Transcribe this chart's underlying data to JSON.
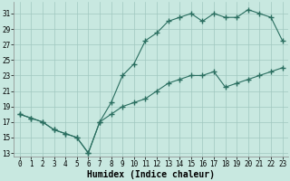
{
  "xlabel": "Humidex (Indice chaleur)",
  "bg_color": "#c8e8e0",
  "grid_color": "#a0c8c0",
  "line_color": "#2a6e60",
  "upper_x": [
    0,
    1,
    2,
    3,
    4,
    5,
    6,
    7,
    8,
    9,
    10,
    11,
    12,
    13,
    14,
    15,
    16,
    17,
    18,
    19,
    20,
    21,
    22,
    23
  ],
  "upper_y": [
    18,
    17.5,
    17,
    16,
    15.5,
    15,
    13,
    17,
    19.5,
    23,
    24.5,
    27.5,
    28.5,
    30,
    30.5,
    31,
    30,
    31,
    30.5,
    30.5,
    31.5,
    31,
    30.5,
    27.5
  ],
  "lower_x": [
    0,
    1,
    2,
    3,
    4,
    5,
    6,
    7,
    8,
    9,
    10,
    11,
    12,
    13,
    14,
    15,
    16,
    17,
    18,
    19,
    20,
    21,
    22,
    23
  ],
  "lower_y": [
    18,
    17.5,
    17,
    16,
    15.5,
    15,
    13,
    17,
    18,
    19,
    19.5,
    20,
    21,
    22,
    22.5,
    23,
    23,
    23.5,
    21.5,
    22,
    22.5,
    23,
    23.5,
    24
  ],
  "xlim": [
    -0.5,
    23.5
  ],
  "ylim": [
    12.5,
    32.5
  ],
  "yticks": [
    13,
    15,
    17,
    19,
    21,
    23,
    25,
    27,
    29,
    31
  ],
  "xticks": [
    0,
    1,
    2,
    3,
    4,
    5,
    6,
    7,
    8,
    9,
    10,
    11,
    12,
    13,
    14,
    15,
    16,
    17,
    18,
    19,
    20,
    21,
    22,
    23
  ],
  "tick_fontsize": 5.5,
  "xlabel_fontsize": 7.0
}
